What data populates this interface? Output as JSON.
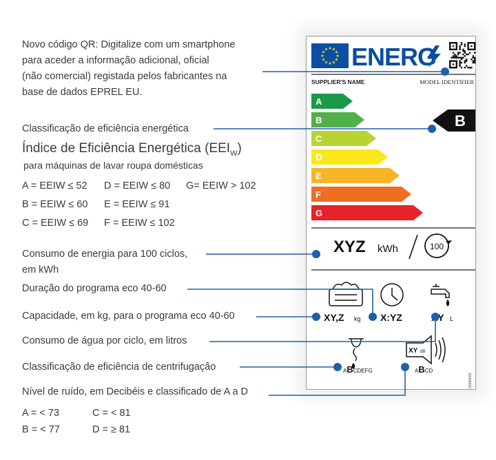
{
  "annotations": {
    "qr": [
      "Novo código QR: Digitalize com um smartphone",
      "para aceder a informação adicional, oficial",
      "(não comercial) registada pelos fabricantes na",
      "base de dados EPREL EU."
    ],
    "class": "Classificação de eficiência energética",
    "eei_title": "Índice de Eficiência Energética (EEI",
    "eei_sub": "W",
    "eei_close": ")",
    "eei_subtitle": "para máquinas de lavar roupa domésticas",
    "eei_rows": [
      [
        "A = EEIW  ≤ 52",
        "D = EEIW ≤ 80",
        "G= EEIW > 102"
      ],
      [
        "B = EEIW  ≤ 60",
        "E = EEIW ≤ 91",
        ""
      ],
      [
        "C = EEIW ≤ 69",
        "F = EEIW ≤ 102",
        ""
      ]
    ],
    "energy": [
      "Consumo de energia para 100 ciclos,",
      "em kWh"
    ],
    "duration": "Duração do programa eco 40-60",
    "capacity": "Capacidade, em kg, para o programa eco 40-60",
    "water": "Consumo de água por ciclo, em litros",
    "spin": "Classificação de eficiência de centrifugação",
    "noise": "Nível de ruído, em Decibéis e classificado de A a D",
    "noise_rows": [
      [
        "A = < 73",
        "C = < 81"
      ],
      [
        "B = < 77",
        "D = ≥ 81"
      ]
    ]
  },
  "label": {
    "brand": "ENERG",
    "supplier": "SUPPLIER'S NAME",
    "model": "MODEL IDENTIFIER",
    "classes": [
      "A",
      "B",
      "C",
      "D",
      "E",
      "F",
      "G"
    ],
    "class_colors": [
      "#1a9a48",
      "#52b04a",
      "#b7d433",
      "#fbe81c",
      "#f7b427",
      "#ef6e22",
      "#e4232a"
    ],
    "selected_class": "B",
    "energy_value": "XYZ",
    "energy_unit": "kWh",
    "cycles": "100",
    "capacity_value": "XY,Z",
    "capacity_unit": "kg",
    "duration_value": "X:YZ",
    "water_value": "XY",
    "water_unit": "L",
    "spin_prefix": "A",
    "spin_selected": "B",
    "spin_suffix": "CDEFG",
    "noise_box": "XY",
    "noise_unit": "dB",
    "noise_prefix": "A",
    "noise_selected": "B",
    "noise_suffix": "CD",
    "regulation": "2019/XXX"
  },
  "colors": {
    "line": "#1f5fa8",
    "dot": "#1f5fa8",
    "eu_blue": "#0b4ea2",
    "star": "#ffdd00"
  }
}
